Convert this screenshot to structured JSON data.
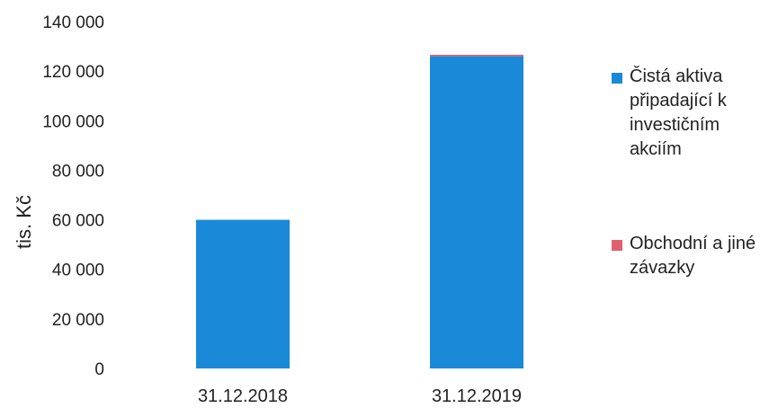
{
  "chart_data": {
    "type": "bar",
    "stacked": true,
    "categories": [
      "31.12.2018",
      "31.12.2019"
    ],
    "series": [
      {
        "name": "Čistá aktiva připadající k investičním akciím",
        "values": [
          60000,
          126000
        ],
        "color": "#1a8ad8"
      },
      {
        "name": "Obchodní a jiné závazky",
        "values": [
          0,
          600
        ],
        "color": "#e06070"
      }
    ],
    "ylabel": "tis. Kč",
    "ylim": [
      0,
      140000
    ],
    "yticks": [
      0,
      20000,
      40000,
      60000,
      80000,
      100000,
      120000,
      140000
    ],
    "ytick_labels": [
      "0",
      "20 000",
      "40 000",
      "60 000",
      "80 000",
      "100 000",
      "120 000",
      "140 000"
    ],
    "grid": false,
    "legend_position": "right"
  }
}
